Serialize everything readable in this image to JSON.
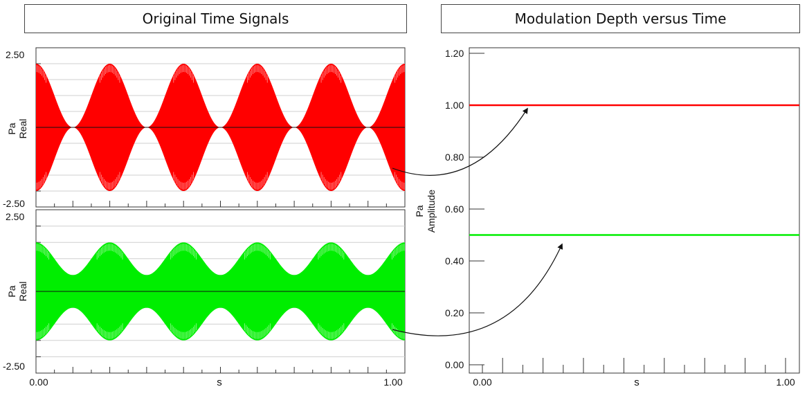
{
  "left_panel": {
    "title": "Original Time Signals"
  },
  "right_panel": {
    "title": "Modulation Depth versus Time"
  },
  "chart_data": [
    {
      "type": "line",
      "name": "top-signal",
      "ylabel_line1": "Pa",
      "ylabel_line2": "Real",
      "ylim": [
        -2.5,
        2.5
      ],
      "ytick_labels": [
        "2.50",
        "-2.50"
      ],
      "xlim": [
        0,
        1
      ],
      "color": "#ff0000",
      "carrier_amplitude": 2.0,
      "modulation_depth": 1.0,
      "modulation_frequency_hz": 5,
      "grid": true
    },
    {
      "type": "line",
      "name": "bottom-signal",
      "ylabel_line1": "Pa",
      "ylabel_line2": "Real",
      "ylim": [
        -2.5,
        2.5
      ],
      "ytick_labels": [
        "2.50",
        "-2.50"
      ],
      "xlim": [
        0,
        1
      ],
      "xlabel": "s",
      "xtick_labels": [
        "0.00",
        "1.00"
      ],
      "color": "#00ee00",
      "carrier_amplitude": 1.5,
      "modulation_depth": 0.5,
      "modulation_frequency_hz": 5,
      "grid": true
    },
    {
      "type": "line",
      "name": "modulation-depth",
      "ylabel_line1": "Pa",
      "ylabel_line2": "Amplitude",
      "xlabel": "s",
      "xlim": [
        0,
        1
      ],
      "ylim": [
        0,
        1.2
      ],
      "ytick_labels": [
        "1.20",
        "1.00",
        "0.80",
        "0.60",
        "0.40",
        "0.20",
        "0.00"
      ],
      "yticks": [
        1.2,
        1.0,
        0.8,
        0.6,
        0.4,
        0.2,
        0.0
      ],
      "xtick_labels": [
        "0.00",
        "1.00"
      ],
      "series": [
        {
          "values": [
            1.0,
            1.0
          ],
          "x": [
            0,
            1
          ],
          "color": "#ff0000"
        },
        {
          "values": [
            0.5,
            0.5
          ],
          "x": [
            0,
            1
          ],
          "color": "#00ee00"
        }
      ],
      "grid": false
    }
  ]
}
